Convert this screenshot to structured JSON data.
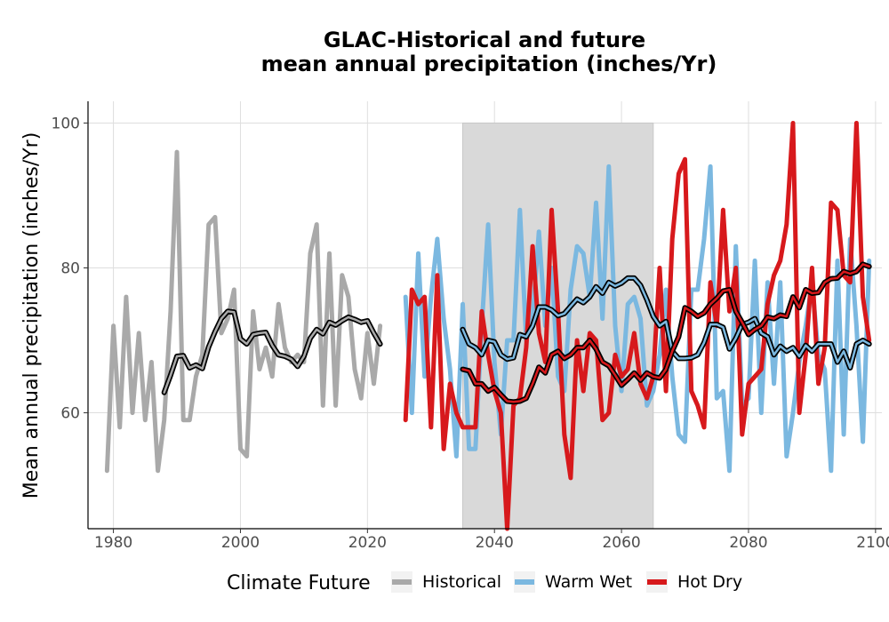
{
  "chart_data": {
    "type": "line",
    "title": "GLAC-Historical and future",
    "subtitle": "mean annual precipitation (inches/Yr)",
    "xlabel": "",
    "ylabel": "Mean annual precipitation (inches/Yr)",
    "xlim": [
      1976,
      2101
    ],
    "ylim": [
      44,
      103
    ],
    "x_ticks": [
      1980,
      2000,
      2020,
      2040,
      2060,
      2080,
      2100
    ],
    "y_ticks": [
      60,
      80,
      100
    ],
    "grid": true,
    "shaded_period": [
      2035,
      2065
    ],
    "legend": {
      "title": "Climate Future",
      "position": "bottom"
    },
    "series": [
      {
        "name": "Historical",
        "color": "#a9a9a9",
        "x": [
          1979,
          1980,
          1981,
          1982,
          1983,
          1984,
          1985,
          1986,
          1987,
          1988,
          1989,
          1990,
          1991,
          1992,
          1993,
          1994,
          1995,
          1996,
          1997,
          1998,
          1999,
          2000,
          2001,
          2002,
          2003,
          2004,
          2005,
          2006,
          2007,
          2008,
          2009,
          2010,
          2011,
          2012,
          2013,
          2014,
          2015,
          2016,
          2017,
          2018,
          2019,
          2020,
          2021,
          2022
        ],
        "values": [
          52,
          72,
          58,
          76,
          60,
          71,
          59,
          67,
          52,
          59,
          74,
          96,
          59,
          59,
          65,
          68,
          86,
          87,
          71,
          73,
          77,
          55,
          54,
          74,
          66,
          69,
          65,
          75,
          69,
          67,
          68,
          67,
          82,
          86,
          61,
          82,
          61,
          79,
          76,
          66,
          62,
          71,
          64,
          72
        ],
        "moving_average": {
          "x": [
            1988,
            1989,
            1990,
            1991,
            1992,
            1993,
            1994,
            1995,
            1996,
            1997,
            1998,
            1999,
            2000,
            2001,
            2002,
            2003,
            2004,
            2005,
            2006,
            2007,
            2008,
            2009,
            2010,
            2011,
            2012,
            2013,
            2014,
            2015,
            2016,
            2017,
            2018,
            2019,
            2020,
            2021,
            2022
          ],
          "values": [
            62.8,
            65.2,
            67.8,
            67.9,
            66.2,
            66.6,
            66.1,
            69.1,
            71.2,
            73.0,
            74.0,
            73.9,
            70.2,
            69.5,
            70.8,
            71.0,
            71.1,
            69.3,
            68.0,
            67.8,
            67.4,
            66.4,
            67.8,
            70.3,
            71.5,
            70.9,
            72.5,
            72.1,
            72.7,
            73.2,
            72.9,
            72.5,
            72.7,
            71.0,
            69.5
          ]
        }
      },
      {
        "name": "Warm Wet",
        "color": "#7bb8e0",
        "x": [
          2026,
          2027,
          2028,
          2029,
          2030,
          2031,
          2032,
          2033,
          2034,
          2035,
          2036,
          2037,
          2038,
          2039,
          2040,
          2041,
          2042,
          2043,
          2044,
          2045,
          2046,
          2047,
          2048,
          2049,
          2050,
          2051,
          2052,
          2053,
          2054,
          2055,
          2056,
          2057,
          2058,
          2059,
          2060,
          2061,
          2062,
          2063,
          2064,
          2065,
          2066,
          2067,
          2068,
          2069,
          2070,
          2071,
          2072,
          2073,
          2074,
          2075,
          2076,
          2077,
          2078,
          2079,
          2080,
          2081,
          2082,
          2083,
          2084,
          2085,
          2086,
          2087,
          2088,
          2089,
          2090,
          2091,
          2092,
          2093,
          2094,
          2095,
          2096,
          2097,
          2098,
          2099
        ],
        "values": [
          76,
          60,
          82,
          65,
          76,
          84,
          73,
          66,
          54,
          75,
          55,
          55,
          72,
          86,
          67,
          57,
          70,
          70,
          88,
          70,
          73,
          85,
          72,
          80,
          65,
          63,
          77,
          83,
          82,
          76,
          89,
          73,
          94,
          72,
          63,
          75,
          76,
          73,
          61,
          63,
          68,
          77,
          65,
          57,
          56,
          77,
          77,
          84,
          94,
          62,
          63,
          52,
          83,
          61,
          62,
          81,
          60,
          78,
          64,
          78,
          54,
          60,
          67,
          72,
          78,
          68,
          66,
          52,
          81,
          57,
          84,
          72,
          56,
          81
        ],
        "moving_average": {
          "x": [
            2035,
            2036,
            2037,
            2038,
            2039,
            2040,
            2041,
            2042,
            2043,
            2044,
            2045,
            2046,
            2047,
            2048,
            2049,
            2050,
            2051,
            2052,
            2053,
            2054,
            2055,
            2056,
            2057,
            2058,
            2059,
            2060,
            2061,
            2062,
            2063,
            2064,
            2065,
            2066,
            2067,
            2068,
            2069,
            2070,
            2071,
            2072,
            2073,
            2074,
            2075,
            2076,
            2077,
            2078,
            2079,
            2080,
            2081,
            2082,
            2083,
            2084,
            2085,
            2086,
            2087,
            2088,
            2089,
            2090,
            2091,
            2092,
            2093,
            2094,
            2095,
            2096,
            2097,
            2098,
            2099
          ],
          "values": [
            71.5,
            69.5,
            69.0,
            68.0,
            70.0,
            69.8,
            68.0,
            67.4,
            67.6,
            70.8,
            70.5,
            72.0,
            74.6,
            74.6,
            74.2,
            73.4,
            73.7,
            74.7,
            75.7,
            75.2,
            76.0,
            77.4,
            76.5,
            78.0,
            77.5,
            77.9,
            78.6,
            78.6,
            77.6,
            75.6,
            73.3,
            72.0,
            72.6,
            68.5,
            67.5,
            67.5,
            67.6,
            68.0,
            69.7,
            72.2,
            72.2,
            71.8,
            68.8,
            70.3,
            72.2,
            72.5,
            73.0,
            71.0,
            70.5,
            68.0,
            69.2,
            68.5,
            69.0,
            67.8,
            69.3,
            68.5,
            69.5,
            69.5,
            69.5,
            67.0,
            68.5,
            66.2,
            69.5,
            70.0,
            69.5
          ]
        }
      },
      {
        "name": "Hot Dry",
        "color": "#d7191c",
        "x": [
          2026,
          2027,
          2028,
          2029,
          2030,
          2031,
          2032,
          2033,
          2034,
          2035,
          2036,
          2037,
          2038,
          2039,
          2040,
          2041,
          2042,
          2043,
          2044,
          2045,
          2046,
          2047,
          2048,
          2049,
          2050,
          2051,
          2052,
          2053,
          2054,
          2055,
          2056,
          2057,
          2058,
          2059,
          2060,
          2061,
          2062,
          2063,
          2064,
          2065,
          2066,
          2067,
          2068,
          2069,
          2070,
          2071,
          2072,
          2073,
          2074,
          2075,
          2076,
          2077,
          2078,
          2079,
          2080,
          2081,
          2082,
          2083,
          2084,
          2085,
          2086,
          2087,
          2088,
          2089,
          2090,
          2091,
          2092,
          2093,
          2094,
          2095,
          2096,
          2097,
          2098,
          2099
        ],
        "values": [
          59,
          77,
          75,
          76,
          58,
          79,
          55,
          64,
          60,
          58,
          58,
          58,
          74,
          68,
          63,
          60,
          44,
          61,
          62,
          69,
          83,
          71,
          67,
          88,
          74,
          57,
          51,
          70,
          63,
          71,
          70,
          59,
          60,
          68,
          65,
          66,
          71,
          64,
          62,
          65,
          80,
          63,
          84,
          93,
          95,
          63,
          61,
          58,
          78,
          72,
          88,
          74,
          80,
          57,
          64,
          65,
          66,
          75,
          79,
          81,
          86,
          100,
          60,
          68,
          80,
          64,
          69,
          89,
          88,
          79,
          78,
          100,
          76,
          70
        ],
        "moving_average": {
          "x": [
            2035,
            2036,
            2037,
            2038,
            2039,
            2040,
            2041,
            2042,
            2043,
            2044,
            2045,
            2046,
            2047,
            2048,
            2049,
            2050,
            2051,
            2052,
            2053,
            2054,
            2055,
            2056,
            2057,
            2058,
            2059,
            2060,
            2061,
            2062,
            2063,
            2064,
            2065,
            2066,
            2067,
            2068,
            2069,
            2070,
            2071,
            2072,
            2073,
            2074,
            2075,
            2076,
            2077,
            2078,
            2079,
            2080,
            2081,
            2082,
            2083,
            2084,
            2085,
            2086,
            2087,
            2088,
            2089,
            2090,
            2091,
            2092,
            2093,
            2094,
            2095,
            2096,
            2097,
            2098,
            2099
          ],
          "values": [
            66.0,
            65.8,
            64.0,
            64.0,
            63.0,
            63.5,
            62.5,
            61.6,
            61.5,
            61.6,
            62.0,
            64.0,
            66.3,
            65.5,
            68.0,
            68.5,
            67.5,
            68.0,
            69.0,
            69.0,
            70.0,
            68.8,
            67.0,
            66.5,
            65.2,
            63.8,
            64.6,
            65.5,
            64.5,
            65.5,
            65.0,
            64.8,
            66.0,
            68.5,
            70.5,
            74.5,
            74.0,
            73.3,
            73.8,
            75.0,
            75.8,
            76.8,
            77.0,
            74.0,
            72.5,
            70.8,
            71.5,
            72.0,
            73.2,
            73.0,
            73.5,
            73.3,
            76.0,
            74.5,
            77.0,
            76.5,
            76.6,
            78.0,
            78.5,
            78.6,
            79.5,
            79.2,
            79.5,
            80.5,
            80.2
          ]
        }
      }
    ]
  }
}
